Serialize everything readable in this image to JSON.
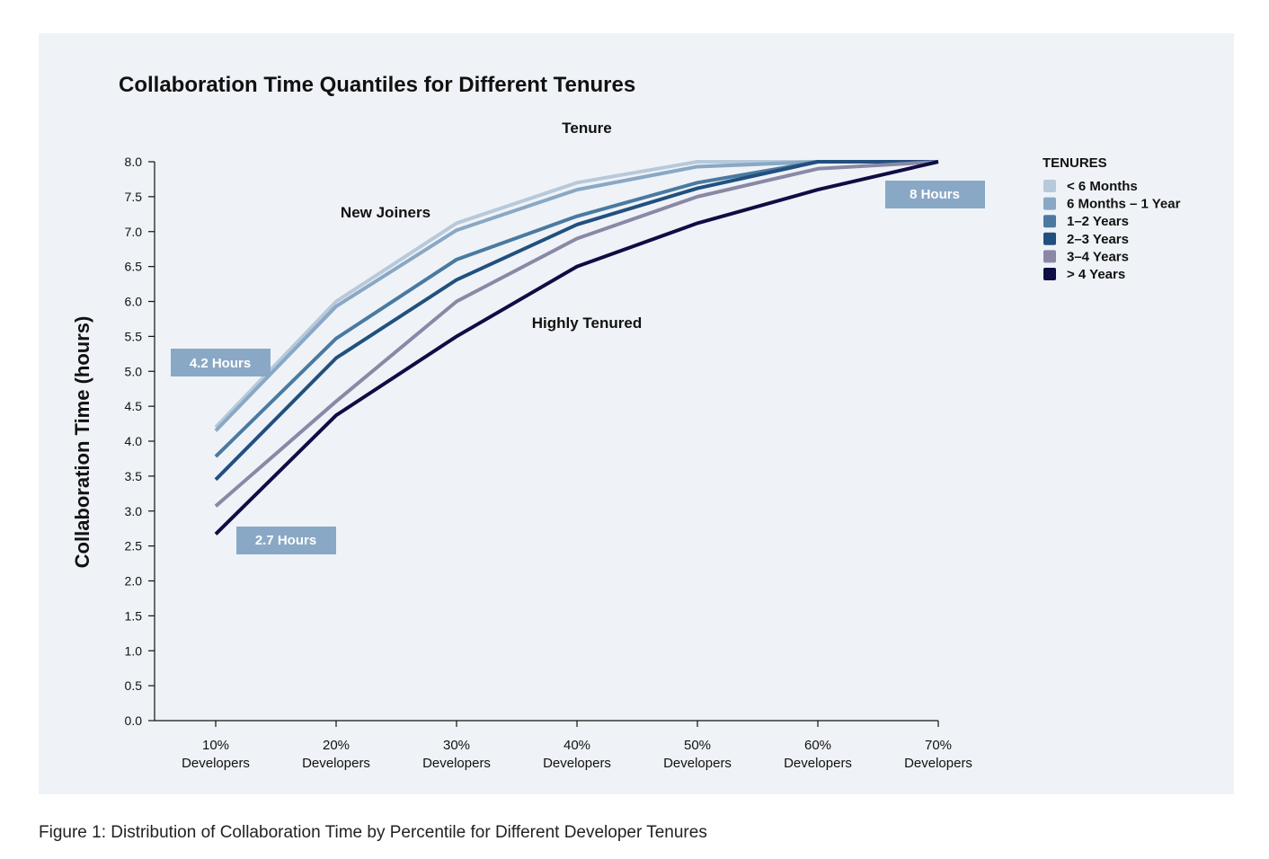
{
  "chart_data": {
    "type": "line",
    "title": "Collaboration Time Quantiles for Different Tenures",
    "subtitle": "Tenure",
    "ylabel": "Collaboration Time (hours)",
    "xlabel": "",
    "ylim": [
      0,
      8
    ],
    "yticks": [
      "0.0",
      "0.5",
      "1.0",
      "1.5",
      "2.0",
      "2.5",
      "3.0",
      "3.5",
      "4.0",
      "4.5",
      "5.0",
      "5.5",
      "6.0",
      "6.5",
      "7.0",
      "7.5",
      "8.0"
    ],
    "categories": [
      [
        "10%",
        "Developers"
      ],
      [
        "20%",
        "Developers"
      ],
      [
        "30%",
        "Developers"
      ],
      [
        "40%",
        "Developers"
      ],
      [
        "50%",
        "Developers"
      ],
      [
        "60%",
        "Developers"
      ],
      [
        "70%",
        "Developers"
      ]
    ],
    "series": [
      {
        "name": "< 6 Months",
        "color": "#b7c9da",
        "values": [
          4.2,
          6.0,
          7.12,
          7.7,
          8.0,
          8.0,
          8.0
        ]
      },
      {
        "name": "6 Months – 1 Year",
        "color": "#89a8c5",
        "values": [
          4.15,
          5.93,
          7.02,
          7.6,
          7.93,
          8.0,
          8.0
        ]
      },
      {
        "name": "1–2 Years",
        "color": "#4a7aa1",
        "values": [
          3.78,
          5.47,
          6.6,
          7.22,
          7.7,
          8.0,
          8.0
        ]
      },
      {
        "name": "2–3 Years",
        "color": "#21507f",
        "values": [
          3.45,
          5.19,
          6.31,
          7.1,
          7.62,
          8.0,
          8.0
        ]
      },
      {
        "name": "3–4 Years",
        "color": "#8a88a6",
        "values": [
          3.07,
          4.57,
          6.0,
          6.9,
          7.5,
          7.9,
          8.0
        ]
      },
      {
        "name": "> 4 Years",
        "color": "#0e0d44",
        "values": [
          2.67,
          4.37,
          5.5,
          6.5,
          7.12,
          7.6,
          8.0
        ]
      }
    ],
    "legend_title": "TENURES",
    "annotations": {
      "new_joiners": "New Joiners",
      "highly_tenured": "Highly Tenured",
      "callout_high": "4.2 Hours",
      "callout_low": "2.7 Hours",
      "callout_end": "8 Hours"
    },
    "callout_color": "#89a8c5"
  },
  "caption": "Figure 1: Distribution of Collaboration Time by Percentile for Different Developer Tenures"
}
